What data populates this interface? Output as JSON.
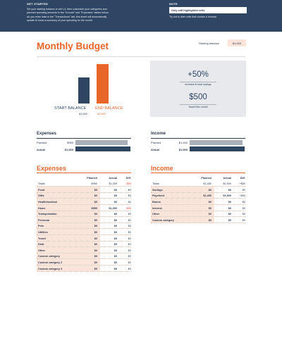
{
  "banner": {
    "get_started_heading": "GET STARTED",
    "get_started_line1": "Set your starting balance in cell L4, then customize your categories and",
    "get_started_line2": "planned spending amounts in the \"Income\" and \"Expenses\" tables below.",
    "get_started_line3": "As you enter data in the \"Transactions\" tab, this sheet will automatically",
    "get_started_line4": "update to show a summary of your spending for the month.",
    "note_heading": "NOTE",
    "note_box_text": "Only edit highlighted cells.",
    "note_text": "Try not to alter cells that contain a formula."
  },
  "header": {
    "title": "Monthly Budget",
    "starting_balance_label": "Starting balance",
    "starting_balance_value": "$1,000"
  },
  "balance_chart": {
    "start_label": "START BALANCE",
    "end_label": "END BALANCE",
    "start_value_text": "$1,000",
    "end_value_text": "$1,500",
    "start_value": 1000,
    "end_value": 1500,
    "colors": {
      "start": "#2e4663",
      "end": "#e8662a"
    }
  },
  "summary": {
    "savings_percent": "+50%",
    "savings_percent_caption": "Increase in total savings",
    "saved_amount": "$500",
    "saved_amount_caption": "Saved this month"
  },
  "expenses_mini": {
    "title": "Expenses",
    "planned_label": "Planned",
    "planned_value": "$950",
    "planned_amount": 950,
    "actual_label": "Actual",
    "actual_value": "$1,000",
    "actual_amount": 1000
  },
  "income_mini": {
    "title": "Income",
    "planned_label": "Planned",
    "planned_value": "$1,450",
    "planned_amount": 1450,
    "actual_label": "Actual",
    "actual_value": "$1,500",
    "actual_amount": 1500
  },
  "expenses_table": {
    "title": "Expenses",
    "headers": {
      "planned": "Planned",
      "actual": "Actual",
      "diff": "Diff."
    },
    "totals": {
      "label": "Totals",
      "planned": "$950",
      "actual": "$1,000",
      "diff": "-$50"
    },
    "rows": [
      {
        "category": "Food",
        "planned": "$0",
        "actual": "$0",
        "diff": "$0"
      },
      {
        "category": "Gifts",
        "planned": "$0",
        "actual": "$0",
        "diff": "$0"
      },
      {
        "category": "Health/medical",
        "planned": "$0",
        "actual": "$0",
        "diff": "$0"
      },
      {
        "category": "Home",
        "planned": "$950",
        "actual": "$1,000",
        "diff": "-$50"
      },
      {
        "category": "Transportation",
        "planned": "$0",
        "actual": "$0",
        "diff": "$0"
      },
      {
        "category": "Personal",
        "planned": "$0",
        "actual": "$0",
        "diff": "$0"
      },
      {
        "category": "Pets",
        "planned": "$0",
        "actual": "$0",
        "diff": "$0"
      },
      {
        "category": "Utilities",
        "planned": "$0",
        "actual": "$0",
        "diff": "$0"
      },
      {
        "category": "Travel",
        "planned": "$0",
        "actual": "$0",
        "diff": "$0"
      },
      {
        "category": "Debt",
        "planned": "$0",
        "actual": "$0",
        "diff": "$0"
      },
      {
        "category": "Other",
        "planned": "$0",
        "actual": "$0",
        "diff": "$0"
      },
      {
        "category": "Custom category",
        "planned": "$0",
        "actual": "$0",
        "diff": "$0"
      },
      {
        "category": "Custom category 2",
        "planned": "$0",
        "actual": "$0",
        "diff": "$0"
      },
      {
        "category": "Custom category 3",
        "planned": "$0",
        "actual": "$0",
        "diff": "$0"
      }
    ]
  },
  "income_table": {
    "title": "Income",
    "headers": {
      "planned": "Planned",
      "actual": "Actual",
      "diff": "Diff."
    },
    "totals": {
      "label": "Totals",
      "planned": "$1,450",
      "actual": "$1,500",
      "diff": "+$50"
    },
    "rows": [
      {
        "category": "Savings",
        "planned": "$0",
        "actual": "$0",
        "diff": "$0"
      },
      {
        "category": "Paycheck",
        "planned": "$1,450",
        "actual": "$1,500",
        "diff": "+$50"
      },
      {
        "category": "Bonus",
        "planned": "$0",
        "actual": "$0",
        "diff": "$0"
      },
      {
        "category": "Interest",
        "planned": "$0",
        "actual": "$0",
        "diff": "$0"
      },
      {
        "category": "Other",
        "planned": "$0",
        "actual": "$0",
        "diff": "$0"
      },
      {
        "category": "Custom category",
        "planned": "$0",
        "actual": "$0",
        "diff": "$0"
      }
    ]
  },
  "colors": {
    "navy": "#2e4663",
    "orange": "#e8662a",
    "highlight": "#fbe4da",
    "negative": "#e03c2d",
    "summary_bg": "#e7e9ec"
  }
}
